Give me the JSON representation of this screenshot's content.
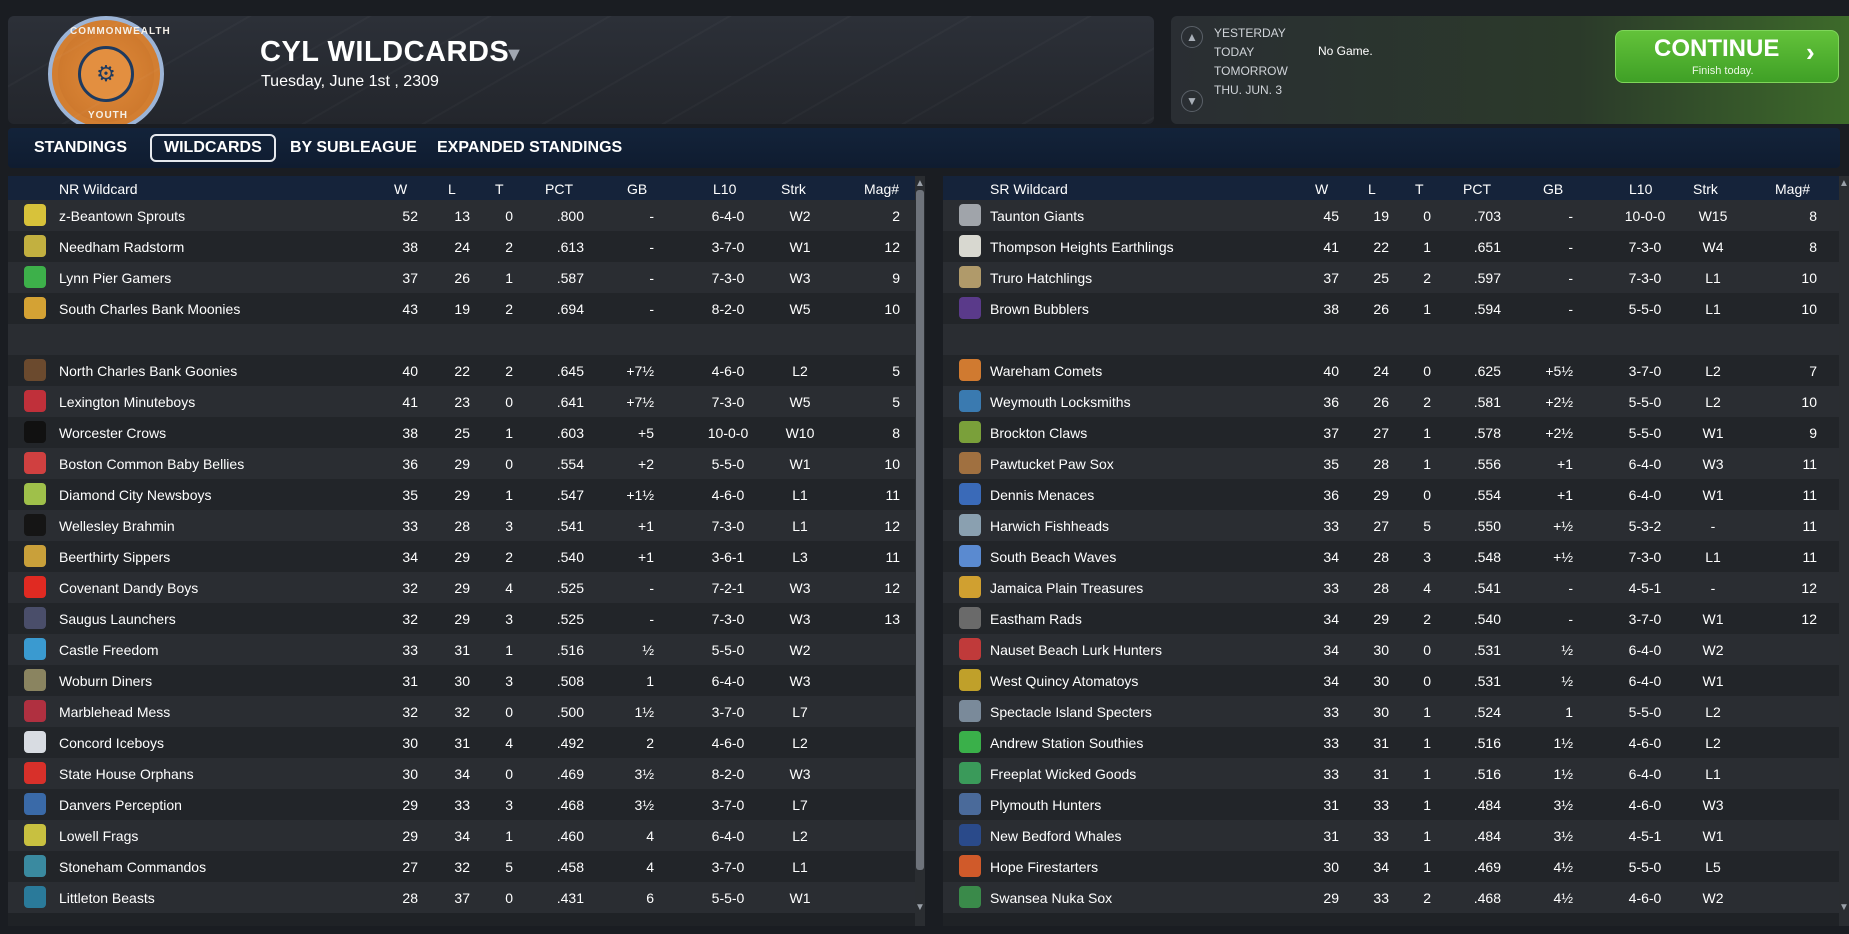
{
  "header": {
    "title": "CYL WILDCARDS",
    "date": "Tuesday, June 1st , 2309",
    "logo_top_text": "COMMONWEALTH",
    "logo_bottom_text": "YOUTH",
    "logo_center": "⚙"
  },
  "schedule": {
    "days": [
      "YESTERDAY",
      "TODAY",
      "TOMORROW",
      "THU. JUN. 3"
    ],
    "today_text": "No Game.",
    "continue_label": "CONTINUE",
    "continue_sub": "Finish today."
  },
  "tabs": [
    "STANDINGS",
    "WILDCARDS",
    "BY SUBLEAGUE",
    "EXPANDED STANDINGS"
  ],
  "left": {
    "headers": {
      "team": "NR  Wildcard",
      "w": "W",
      "l": "L",
      "t": "T",
      "pct": "PCT",
      "gb": "GB",
      "l10": "L10",
      "strk": "Strk",
      "mag": "Mag#"
    },
    "rows": [
      {
        "team": "z-Beantown Sprouts",
        "w": "52",
        "l": "13",
        "t": "0",
        "pct": ".800",
        "gb": "-",
        "l10": "6-4-0",
        "strk": "W2",
        "mag": "2",
        "color": "#d8c23a"
      },
      {
        "team": "Needham Radstorm",
        "w": "38",
        "l": "24",
        "t": "2",
        "pct": ".613",
        "gb": "-",
        "l10": "3-7-0",
        "strk": "W1",
        "mag": "12",
        "color": "#c2b040"
      },
      {
        "team": "Lynn Pier Gamers",
        "w": "37",
        "l": "26",
        "t": "1",
        "pct": ".587",
        "gb": "-",
        "l10": "7-3-0",
        "strk": "W3",
        "mag": "9",
        "color": "#3db04a"
      },
      {
        "team": "South Charles Bank Moonies",
        "w": "43",
        "l": "19",
        "t": "2",
        "pct": ".694",
        "gb": "-",
        "l10": "8-2-0",
        "strk": "W5",
        "mag": "10",
        "color": "#d4a234"
      },
      {
        "team": "",
        "w": "",
        "l": "",
        "t": "",
        "pct": "",
        "gb": "",
        "l10": "",
        "strk": "",
        "mag": "",
        "color": ""
      },
      {
        "team": "North Charles Bank Goonies",
        "w": "40",
        "l": "22",
        "t": "2",
        "pct": ".645",
        "gb": "+7½",
        "l10": "4-6-0",
        "strk": "L2",
        "mag": "5",
        "color": "#6b4a2e"
      },
      {
        "team": "Lexington Minuteboys",
        "w": "41",
        "l": "23",
        "t": "0",
        "pct": ".641",
        "gb": "+7½",
        "l10": "7-3-0",
        "strk": "W5",
        "mag": "5",
        "color": "#c0303a"
      },
      {
        "team": "Worcester Crows",
        "w": "38",
        "l": "25",
        "t": "1",
        "pct": ".603",
        "gb": "+5",
        "l10": "10-0-0",
        "strk": "W10",
        "mag": "8",
        "color": "#111111"
      },
      {
        "team": "Boston Common Baby Bellies",
        "w": "36",
        "l": "29",
        "t": "0",
        "pct": ".554",
        "gb": "+2",
        "l10": "5-5-0",
        "strk": "W1",
        "mag": "10",
        "color": "#d04040"
      },
      {
        "team": "Diamond City Newsboys",
        "w": "35",
        "l": "29",
        "t": "1",
        "pct": ".547",
        "gb": "+1½",
        "l10": "4-6-0",
        "strk": "L1",
        "mag": "11",
        "color": "#9fc04a"
      },
      {
        "team": "Wellesley Brahmin",
        "w": "33",
        "l": "28",
        "t": "3",
        "pct": ".541",
        "gb": "+1",
        "l10": "7-3-0",
        "strk": "L1",
        "mag": "12",
        "color": "#151515"
      },
      {
        "team": "Beerthirty Sippers",
        "w": "34",
        "l": "29",
        "t": "2",
        "pct": ".540",
        "gb": "+1",
        "l10": "3-6-1",
        "strk": "L3",
        "mag": "11",
        "color": "#c9a03a"
      },
      {
        "team": "Covenant Dandy Boys",
        "w": "32",
        "l": "29",
        "t": "4",
        "pct": ".525",
        "gb": "-",
        "l10": "7-2-1",
        "strk": "W3",
        "mag": "12",
        "color": "#e02a22"
      },
      {
        "team": "Saugus Launchers",
        "w": "32",
        "l": "29",
        "t": "3",
        "pct": ".525",
        "gb": "-",
        "l10": "7-3-0",
        "strk": "W3",
        "mag": "13",
        "color": "#4a4e6a"
      },
      {
        "team": "Castle Freedom",
        "w": "33",
        "l": "31",
        "t": "1",
        "pct": ".516",
        "gb": "½",
        "l10": "5-5-0",
        "strk": "W2",
        "mag": "",
        "color": "#3a9ad0"
      },
      {
        "team": "Woburn Diners",
        "w": "31",
        "l": "30",
        "t": "3",
        "pct": ".508",
        "gb": "1",
        "l10": "6-4-0",
        "strk": "W3",
        "mag": "",
        "color": "#8a8460"
      },
      {
        "team": "Marblehead Mess",
        "w": "32",
        "l": "32",
        "t": "0",
        "pct": ".500",
        "gb": "1½",
        "l10": "3-7-0",
        "strk": "L7",
        "mag": "",
        "color": "#b03040"
      },
      {
        "team": "Concord Iceboys",
        "w": "30",
        "l": "31",
        "t": "4",
        "pct": ".492",
        "gb": "2",
        "l10": "4-6-0",
        "strk": "L2",
        "mag": "",
        "color": "#d8dce2"
      },
      {
        "team": "State House Orphans",
        "w": "30",
        "l": "34",
        "t": "0",
        "pct": ".469",
        "gb": "3½",
        "l10": "8-2-0",
        "strk": "W3",
        "mag": "",
        "color": "#d8302a"
      },
      {
        "team": "Danvers Perception",
        "w": "29",
        "l": "33",
        "t": "3",
        "pct": ".468",
        "gb": "3½",
        "l10": "3-7-0",
        "strk": "L7",
        "mag": "",
        "color": "#3a6aa8"
      },
      {
        "team": "Lowell Frags",
        "w": "29",
        "l": "34",
        "t": "1",
        "pct": ".460",
        "gb": "4",
        "l10": "6-4-0",
        "strk": "L2",
        "mag": "",
        "color": "#c8c040"
      },
      {
        "team": "Stoneham Commandos",
        "w": "27",
        "l": "32",
        "t": "5",
        "pct": ".458",
        "gb": "4",
        "l10": "3-7-0",
        "strk": "L1",
        "mag": "",
        "color": "#3a8aa0"
      },
      {
        "team": "Littleton Beasts",
        "w": "28",
        "l": "37",
        "t": "0",
        "pct": ".431",
        "gb": "6",
        "l10": "5-5-0",
        "strk": "W1",
        "mag": "",
        "color": "#2a7a9a"
      }
    ]
  },
  "right": {
    "headers": {
      "team": "SR  Wildcard",
      "w": "W",
      "l": "L",
      "t": "T",
      "pct": "PCT",
      "gb": "GB",
      "l10": "L10",
      "strk": "Strk",
      "mag": "Mag#"
    },
    "rows": [
      {
        "team": "Taunton Giants",
        "w": "45",
        "l": "19",
        "t": "0",
        "pct": ".703",
        "gb": "-",
        "l10": "10-0-0",
        "strk": "W15",
        "mag": "8",
        "color": "#a0a4aa"
      },
      {
        "team": "Thompson Heights Earthlings",
        "w": "41",
        "l": "22",
        "t": "1",
        "pct": ".651",
        "gb": "-",
        "l10": "7-3-0",
        "strk": "W4",
        "mag": "8",
        "color": "#d8d8d0"
      },
      {
        "team": "Truro Hatchlings",
        "w": "37",
        "l": "25",
        "t": "2",
        "pct": ".597",
        "gb": "-",
        "l10": "7-3-0",
        "strk": "L1",
        "mag": "10",
        "color": "#b09a6a"
      },
      {
        "team": "Brown Bubblers",
        "w": "38",
        "l": "26",
        "t": "1",
        "pct": ".594",
        "gb": "-",
        "l10": "5-5-0",
        "strk": "L1",
        "mag": "10",
        "color": "#5a3a8a"
      },
      {
        "team": "",
        "w": "",
        "l": "",
        "t": "",
        "pct": "",
        "gb": "",
        "l10": "",
        "strk": "",
        "mag": "",
        "color": ""
      },
      {
        "team": "Wareham Comets",
        "w": "40",
        "l": "24",
        "t": "0",
        "pct": ".625",
        "gb": "+5½",
        "l10": "3-7-0",
        "strk": "L2",
        "mag": "7",
        "color": "#d07a30"
      },
      {
        "team": "Weymouth Locksmiths",
        "w": "36",
        "l": "26",
        "t": "2",
        "pct": ".581",
        "gb": "+2½",
        "l10": "5-5-0",
        "strk": "L2",
        "mag": "10",
        "color": "#3a7ab0"
      },
      {
        "team": "Brockton Claws",
        "w": "37",
        "l": "27",
        "t": "1",
        "pct": ".578",
        "gb": "+2½",
        "l10": "5-5-0",
        "strk": "W1",
        "mag": "9",
        "color": "#7aa03a"
      },
      {
        "team": "Pawtucket Paw Sox",
        "w": "35",
        "l": "28",
        "t": "1",
        "pct": ".556",
        "gb": "+1",
        "l10": "6-4-0",
        "strk": "W3",
        "mag": "11",
        "color": "#a07040"
      },
      {
        "team": "Dennis Menaces",
        "w": "36",
        "l": "29",
        "t": "0",
        "pct": ".554",
        "gb": "+1",
        "l10": "6-4-0",
        "strk": "W1",
        "mag": "11",
        "color": "#3a6ab8"
      },
      {
        "team": "Harwich Fishheads",
        "w": "33",
        "l": "27",
        "t": "5",
        "pct": ".550",
        "gb": "+½",
        "l10": "5-3-2",
        "strk": "-",
        "mag": "11",
        "color": "#8aa0b0"
      },
      {
        "team": "South Beach Waves",
        "w": "34",
        "l": "28",
        "t": "3",
        "pct": ".548",
        "gb": "+½",
        "l10": "7-3-0",
        "strk": "L1",
        "mag": "11",
        "color": "#5a8ad0"
      },
      {
        "team": "Jamaica Plain Treasures",
        "w": "33",
        "l": "28",
        "t": "4",
        "pct": ".541",
        "gb": "-",
        "l10": "4-5-1",
        "strk": "-",
        "mag": "12",
        "color": "#d0a030"
      },
      {
        "team": "Eastham Rads",
        "w": "34",
        "l": "29",
        "t": "2",
        "pct": ".540",
        "gb": "-",
        "l10": "3-7-0",
        "strk": "W1",
        "mag": "12",
        "color": "#6a6a6a"
      },
      {
        "team": "Nauset Beach Lurk Hunters",
        "w": "34",
        "l": "30",
        "t": "0",
        "pct": ".531",
        "gb": "½",
        "l10": "6-4-0",
        "strk": "W2",
        "mag": "",
        "color": "#c03a3a"
      },
      {
        "team": "West Quincy Atomatoys",
        "w": "34",
        "l": "30",
        "t": "0",
        "pct": ".531",
        "gb": "½",
        "l10": "6-4-0",
        "strk": "W1",
        "mag": "",
        "color": "#c0a02a"
      },
      {
        "team": "Spectacle Island Specters",
        "w": "33",
        "l": "30",
        "t": "1",
        "pct": ".524",
        "gb": "1",
        "l10": "5-5-0",
        "strk": "L2",
        "mag": "",
        "color": "#7a8a9a"
      },
      {
        "team": "Andrew Station Southies",
        "w": "33",
        "l": "31",
        "t": "1",
        "pct": ".516",
        "gb": "1½",
        "l10": "4-6-0",
        "strk": "L2",
        "mag": "",
        "color": "#3ab04a"
      },
      {
        "team": "Freeplat Wicked Goods",
        "w": "33",
        "l": "31",
        "t": "1",
        "pct": ".516",
        "gb": "1½",
        "l10": "6-4-0",
        "strk": "L1",
        "mag": "",
        "color": "#3a9a5a"
      },
      {
        "team": "Plymouth Hunters",
        "w": "31",
        "l": "33",
        "t": "1",
        "pct": ".484",
        "gb": "3½",
        "l10": "4-6-0",
        "strk": "W3",
        "mag": "",
        "color": "#4a6a9a"
      },
      {
        "team": "New Bedford Whales",
        "w": "31",
        "l": "33",
        "t": "1",
        "pct": ".484",
        "gb": "3½",
        "l10": "4-5-1",
        "strk": "W1",
        "mag": "",
        "color": "#2a4a8a"
      },
      {
        "team": "Hope Firestarters",
        "w": "30",
        "l": "34",
        "t": "1",
        "pct": ".469",
        "gb": "4½",
        "l10": "5-5-0",
        "strk": "L5",
        "mag": "",
        "color": "#d05a2a"
      },
      {
        "team": "Swansea Nuka Sox",
        "w": "29",
        "l": "33",
        "t": "2",
        "pct": ".468",
        "gb": "4½",
        "l10": "4-6-0",
        "strk": "W2",
        "mag": "",
        "color": "#3a8a4a"
      }
    ]
  }
}
